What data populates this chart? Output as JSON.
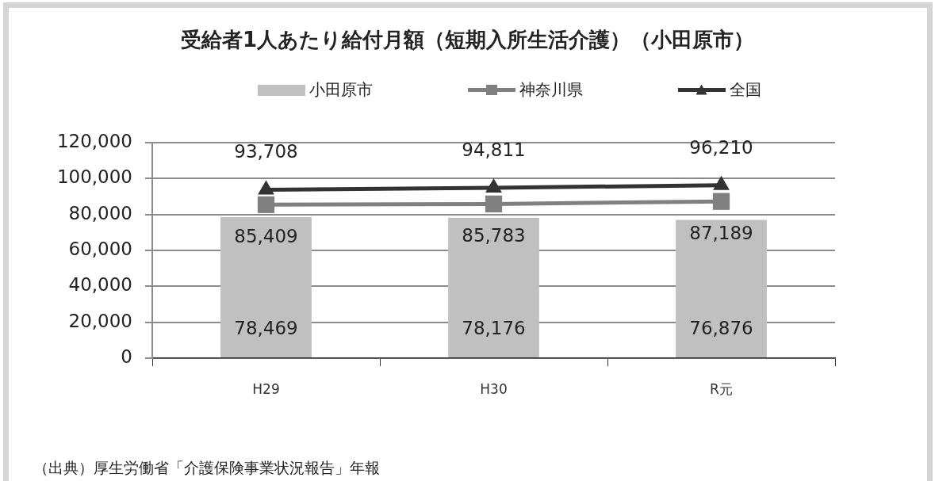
{
  "chart_data": {
    "type": "bar",
    "title": "受給者1人あたり給付月額（短期入所生活介護）（小田原市）",
    "categories": [
      "H29",
      "H30",
      "R元"
    ],
    "series": [
      {
        "name": "小田原市",
        "color": "#c0c0c0",
        "values": [
          78469,
          78176,
          76876
        ],
        "value_labels": [
          "78,469",
          "78,176",
          "76,876"
        ]
      },
      {
        "name": "神奈川県",
        "type": "line",
        "color": "#808080",
        "marker": "square",
        "values": [
          85409,
          85783,
          87189
        ],
        "value_labels": [
          "85,409",
          "85,783",
          "87,189"
        ]
      },
      {
        "name": "全国",
        "type": "line",
        "color": "#333333",
        "marker": "triangle",
        "values": [
          93708,
          94811,
          96210
        ],
        "value_labels": [
          "93,708",
          "94,811",
          "96,210"
        ]
      }
    ],
    "ylim": [
      0,
      120000
    ],
    "yticks": [
      0,
      {
        "value": 20000,
        "label": "20,000"
      },
      {
        "value": 40000,
        "label": "40,000"
      },
      {
        "value": 60000,
        "label": "60,000"
      },
      {
        "value": 80000,
        "label": "80,000"
      },
      {
        "value": 100000,
        "label": "100,000"
      },
      {
        "value": 120000,
        "label": "120,000"
      }
    ],
    "grid": "y",
    "legend": "top",
    "annotations": [
      "（出典）厚生労働省「介護保険事業状況報告」年報"
    ]
  }
}
